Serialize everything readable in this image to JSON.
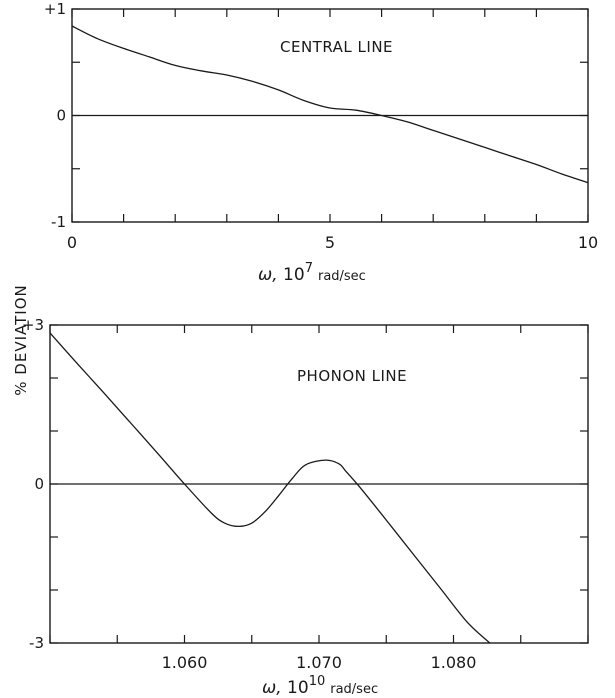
{
  "ylabel": "% DEVIATION",
  "chart_data": [
    {
      "type": "line",
      "annotation": "CENTRAL LINE",
      "xlabel": {
        "symbol": "ω,",
        "unit": "10",
        "exp": "7",
        "rest": "rad/sec"
      },
      "xlim": [
        0,
        10
      ],
      "ylim": [
        -1,
        1
      ],
      "x_ticks": [
        0,
        1,
        2,
        3,
        4,
        5,
        6,
        7,
        8,
        9,
        10
      ],
      "x_tick_labels": [
        {
          "value": 0,
          "label": "0"
        },
        {
          "value": 5,
          "label": "5"
        },
        {
          "value": 10,
          "label": "10"
        }
      ],
      "y_ticks": [
        -1,
        -0.5,
        0,
        0.5,
        1
      ],
      "y_tick_labels": [
        {
          "value": 1,
          "label": "+1"
        },
        {
          "value": 0,
          "label": "0"
        },
        {
          "value": -1,
          "label": "-1"
        }
      ],
      "zero_line": true,
      "series": [
        {
          "x": [
            0,
            0.5,
            1,
            1.5,
            2,
            2.5,
            3,
            3.5,
            4,
            4.5,
            5,
            5.5,
            6,
            6.5,
            7,
            7.5,
            8,
            8.5,
            9,
            9.5,
            10
          ],
          "y": [
            0.84,
            0.72,
            0.63,
            0.55,
            0.47,
            0.42,
            0.38,
            0.32,
            0.24,
            0.14,
            0.07,
            0.05,
            0.0,
            -0.06,
            -0.14,
            -0.22,
            -0.3,
            -0.38,
            -0.46,
            -0.55,
            -0.63
          ]
        }
      ]
    },
    {
      "type": "line",
      "annotation": "PHONON LINE",
      "xlabel": {
        "symbol": "ω,",
        "unit": "10",
        "exp": "10",
        "rest": "rad/sec"
      },
      "xlim": [
        1.05,
        1.09
      ],
      "ylim": [
        -3,
        3
      ],
      "x_ticks": [
        1.05,
        1.055,
        1.06,
        1.065,
        1.07,
        1.075,
        1.08,
        1.085,
        1.09
      ],
      "x_tick_labels": [
        {
          "value": 1.06,
          "label": "1.060"
        },
        {
          "value": 1.07,
          "label": "1.070"
        },
        {
          "value": 1.08,
          "label": "1.080"
        }
      ],
      "y_ticks": [
        -3,
        -2,
        -1,
        0,
        1,
        2,
        3
      ],
      "y_tick_labels": [
        {
          "value": 3,
          "label": "+3"
        },
        {
          "value": 0,
          "label": "0"
        },
        {
          "value": -3,
          "label": "-3"
        }
      ],
      "zero_line": true,
      "series": [
        {
          "x": [
            1.05,
            1.052,
            1.054,
            1.056,
            1.058,
            1.06,
            1.062,
            1.063,
            1.064,
            1.065,
            1.066,
            1.067,
            1.068,
            1.069,
            1.0705,
            1.0715,
            1.072,
            1.073,
            1.075,
            1.077,
            1.079,
            1.081,
            1.0827
          ],
          "y": [
            2.85,
            2.28,
            1.72,
            1.15,
            0.58,
            0.0,
            -0.55,
            -0.74,
            -0.8,
            -0.74,
            -0.52,
            -0.22,
            0.1,
            0.36,
            0.45,
            0.38,
            0.24,
            -0.05,
            -0.68,
            -1.32,
            -1.96,
            -2.6,
            -3.0
          ]
        }
      ]
    }
  ]
}
